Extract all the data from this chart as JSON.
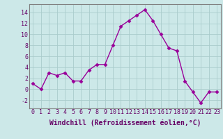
{
  "x": [
    0,
    1,
    2,
    3,
    4,
    5,
    6,
    7,
    8,
    9,
    10,
    11,
    12,
    13,
    14,
    15,
    16,
    17,
    18,
    19,
    20,
    21,
    22,
    23
  ],
  "y": [
    1.0,
    0.0,
    3.0,
    2.5,
    3.0,
    1.5,
    1.5,
    3.5,
    4.5,
    4.5,
    8.0,
    11.5,
    12.5,
    13.5,
    14.5,
    12.5,
    10.0,
    7.5,
    7.0,
    1.5,
    -0.5,
    -2.5,
    -0.5,
    -0.5
  ],
  "line_color": "#990099",
  "marker": "D",
  "marker_size": 2.5,
  "bg_color": "#cce8e8",
  "grid_color": "#b0d0d0",
  "xlabel": "Windchill (Refroidissement éolien,°C)",
  "xlabel_fontsize": 7,
  "xlim": [
    -0.5,
    23.5
  ],
  "ylim": [
    -3.5,
    15.5
  ],
  "yticks": [
    -2,
    0,
    2,
    4,
    6,
    8,
    10,
    12,
    14
  ],
  "xticks": [
    0,
    1,
    2,
    3,
    4,
    5,
    6,
    7,
    8,
    9,
    10,
    11,
    12,
    13,
    14,
    15,
    16,
    17,
    18,
    19,
    20,
    21,
    22,
    23
  ],
  "tick_fontsize": 6,
  "line_width": 1.0,
  "spine_color": "#808080"
}
